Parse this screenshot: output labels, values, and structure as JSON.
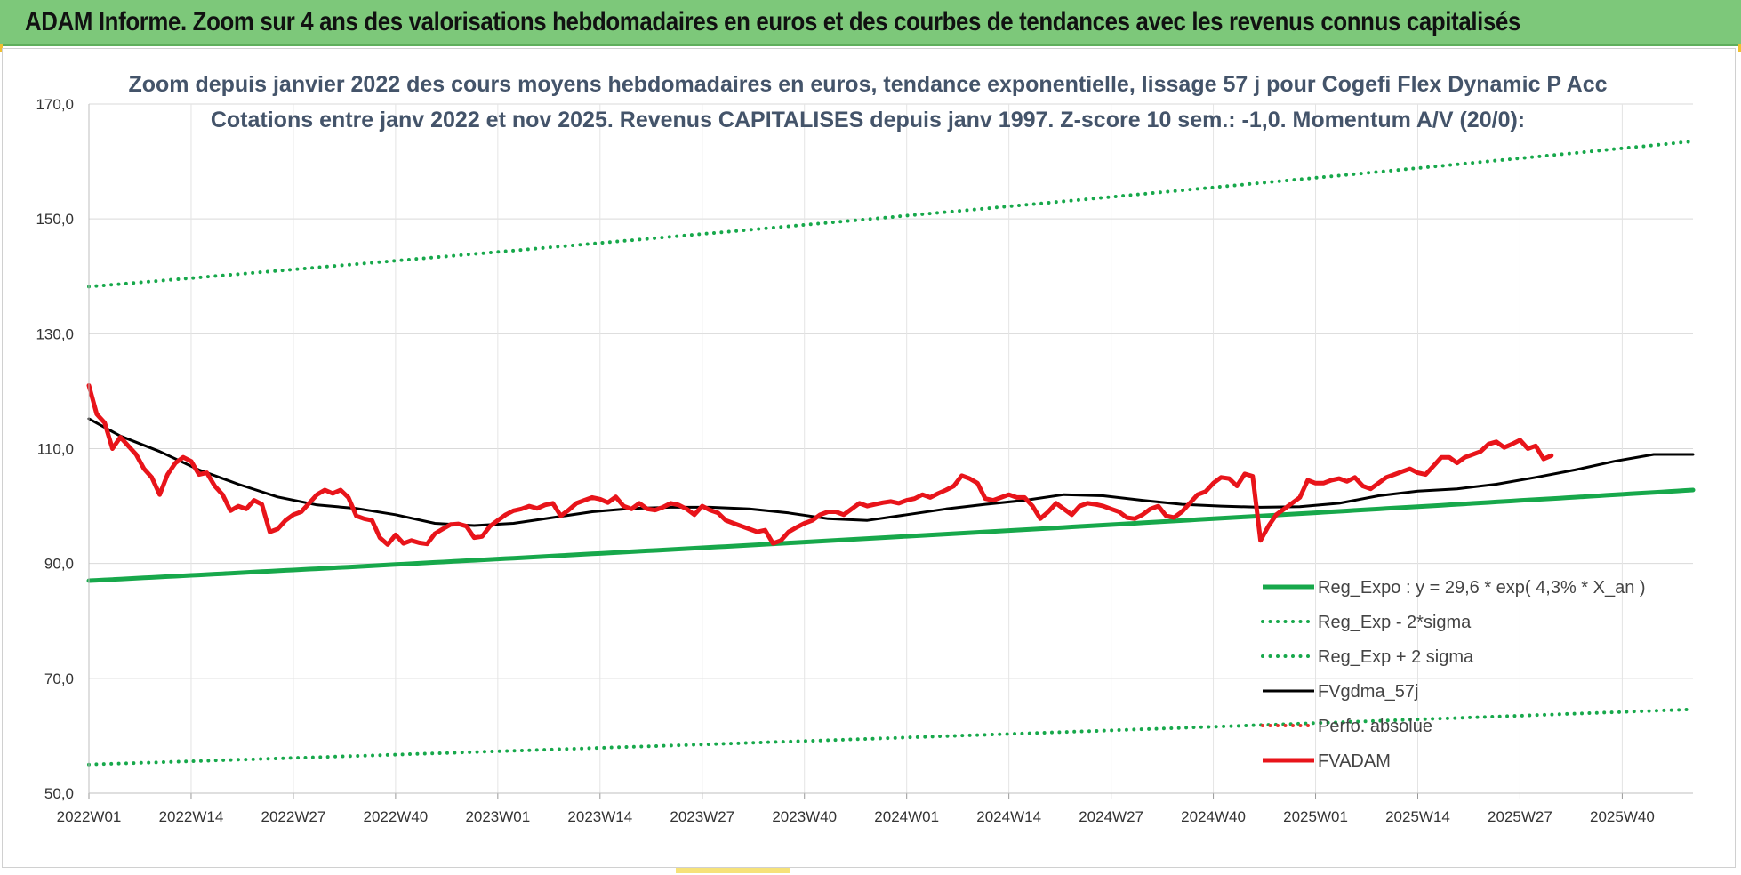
{
  "banner": {
    "title": "ADAM Informe. Zoom sur 4 ans des valorisations hebdomadaires en euros et des courbes de tendances avec les revenus connus capitalisés"
  },
  "chart_data": {
    "type": "line",
    "title_lines": [
      "Zoom depuis janvier 2022 des cours moyens hebdomadaires en euros, tendance exponentielle, lissage 57 j pour Cogefi Flex Dynamic P Acc",
      "Cotations entre janv 2022 et nov 2025. Revenus CAPITALISES depuis janv 1997. Z-score 10 sem.: -1,0. Momentum A/V (20/0):"
    ],
    "xlabel": "",
    "ylabel": "",
    "ylim": [
      50,
      170
    ],
    "yticks": [
      "50,0",
      "70,0",
      "90,0",
      "110,0",
      "130,0",
      "150,0",
      "170,0"
    ],
    "x_range_weeks": [
      1,
      205
    ],
    "xticks": [
      {
        "label": "2022W01",
        "week": 1
      },
      {
        "label": "2022W14",
        "week": 14
      },
      {
        "label": "2022W27",
        "week": 27
      },
      {
        "label": "2022W40",
        "week": 40
      },
      {
        "label": "2023W01",
        "week": 53
      },
      {
        "label": "2023W14",
        "week": 66
      },
      {
        "label": "2023W27",
        "week": 79
      },
      {
        "label": "2023W40",
        "week": 92
      },
      {
        "label": "2024W01",
        "week": 105
      },
      {
        "label": "2024W14",
        "week": 118
      },
      {
        "label": "2024W27",
        "week": 131
      },
      {
        "label": "2024W40",
        "week": 144
      },
      {
        "label": "2025W01",
        "week": 157
      },
      {
        "label": "2025W14",
        "week": 170
      },
      {
        "label": "2025W27",
        "week": 183
      },
      {
        "label": "2025W40",
        "week": 196
      }
    ],
    "grid": true,
    "legend_position": "bottom-right",
    "series": [
      {
        "name": "Reg_Expo : y = 29,6 * exp( 4,3% *  X_an )",
        "color": "#17a84b",
        "style": "solid",
        "width": 5,
        "points": [
          [
            1,
            87.0
          ],
          [
            205,
            102.8
          ]
        ]
      },
      {
        "name": "Reg_Exp - 2*sigma",
        "color": "#17a84b",
        "style": "dotted",
        "width": 4,
        "points": [
          [
            1,
            55.0
          ],
          [
            205,
            64.6
          ]
        ]
      },
      {
        "name": "Reg_Exp + 2 sigma",
        "color": "#17a84b",
        "style": "dotted",
        "width": 4,
        "points": [
          [
            1,
            138.2
          ],
          [
            205,
            163.5
          ]
        ]
      },
      {
        "name": "FVgdma_57j",
        "color": "#000000",
        "style": "solid",
        "width": 3,
        "points": [
          [
            1,
            115.2
          ],
          [
            5,
            112.2
          ],
          [
            10,
            109.5
          ],
          [
            15,
            106.3
          ],
          [
            20,
            103.8
          ],
          [
            25,
            101.6
          ],
          [
            30,
            100.2
          ],
          [
            35,
            99.6
          ],
          [
            40,
            98.5
          ],
          [
            45,
            97.0
          ],
          [
            50,
            96.6
          ],
          [
            55,
            97.0
          ],
          [
            60,
            98.0
          ],
          [
            65,
            99.0
          ],
          [
            70,
            99.6
          ],
          [
            75,
            99.8
          ],
          [
            80,
            99.8
          ],
          [
            85,
            99.5
          ],
          [
            90,
            98.8
          ],
          [
            95,
            97.8
          ],
          [
            100,
            97.5
          ],
          [
            105,
            98.5
          ],
          [
            110,
            99.5
          ],
          [
            115,
            100.3
          ],
          [
            120,
            101.0
          ],
          [
            125,
            102.0
          ],
          [
            130,
            101.8
          ],
          [
            135,
            101.0
          ],
          [
            140,
            100.3
          ],
          [
            145,
            100.0
          ],
          [
            150,
            99.8
          ],
          [
            155,
            99.9
          ],
          [
            160,
            100.5
          ],
          [
            165,
            101.8
          ],
          [
            170,
            102.6
          ],
          [
            175,
            103.0
          ],
          [
            180,
            103.8
          ],
          [
            185,
            105.0
          ],
          [
            190,
            106.3
          ],
          [
            195,
            107.8
          ],
          [
            200,
            109.0
          ],
          [
            205,
            109.0
          ]
        ]
      },
      {
        "name": "Perfo. absolue",
        "color": "#e8322e",
        "style": "dotted",
        "width": 2,
        "points": []
      },
      {
        "name": "FVADAM",
        "color": "#e8141a",
        "style": "solid",
        "width": 5,
        "points": [
          [
            1,
            121.0
          ],
          [
            2,
            116.0
          ],
          [
            3,
            114.5
          ],
          [
            4,
            110.0
          ],
          [
            5,
            112.0
          ],
          [
            6,
            110.5
          ],
          [
            7,
            109.0
          ],
          [
            8,
            106.5
          ],
          [
            9,
            105.0
          ],
          [
            10,
            102.0
          ],
          [
            11,
            105.5
          ],
          [
            12,
            107.5
          ],
          [
            13,
            108.5
          ],
          [
            14,
            107.8
          ],
          [
            15,
            105.5
          ],
          [
            16,
            105.8
          ],
          [
            17,
            103.5
          ],
          [
            18,
            102.0
          ],
          [
            19,
            99.2
          ],
          [
            20,
            100.0
          ],
          [
            21,
            99.5
          ],
          [
            22,
            101.0
          ],
          [
            23,
            100.3
          ],
          [
            24,
            95.5
          ],
          [
            25,
            96.0
          ],
          [
            26,
            97.5
          ],
          [
            27,
            98.5
          ],
          [
            28,
            99.0
          ],
          [
            29,
            100.5
          ],
          [
            30,
            102.0
          ],
          [
            31,
            102.8
          ],
          [
            32,
            102.2
          ],
          [
            33,
            102.8
          ],
          [
            34,
            101.5
          ],
          [
            35,
            98.3
          ],
          [
            36,
            97.8
          ],
          [
            37,
            97.5
          ],
          [
            38,
            94.5
          ],
          [
            39,
            93.3
          ],
          [
            40,
            95.0
          ],
          [
            41,
            93.5
          ],
          [
            42,
            94.0
          ],
          [
            43,
            93.6
          ],
          [
            44,
            93.4
          ],
          [
            45,
            95.2
          ],
          [
            46,
            96.0
          ],
          [
            47,
            96.8
          ],
          [
            48,
            96.9
          ],
          [
            49,
            96.5
          ],
          [
            50,
            94.5
          ],
          [
            51,
            94.7
          ],
          [
            52,
            96.5
          ],
          [
            53,
            97.5
          ],
          [
            54,
            98.5
          ],
          [
            55,
            99.2
          ],
          [
            56,
            99.5
          ],
          [
            57,
            100.0
          ],
          [
            58,
            99.6
          ],
          [
            59,
            100.2
          ],
          [
            60,
            100.5
          ],
          [
            61,
            98.3
          ],
          [
            62,
            99.3
          ],
          [
            63,
            100.5
          ],
          [
            64,
            101.0
          ],
          [
            65,
            101.5
          ],
          [
            66,
            101.2
          ],
          [
            67,
            100.6
          ],
          [
            68,
            101.6
          ],
          [
            69,
            100.0
          ],
          [
            70,
            99.5
          ],
          [
            71,
            100.5
          ],
          [
            72,
            99.5
          ],
          [
            73,
            99.3
          ],
          [
            74,
            99.8
          ],
          [
            75,
            100.5
          ],
          [
            76,
            100.2
          ],
          [
            77,
            99.5
          ],
          [
            78,
            98.5
          ],
          [
            79,
            100.0
          ],
          [
            80,
            99.3
          ],
          [
            81,
            98.8
          ],
          [
            82,
            97.5
          ],
          [
            83,
            97.0
          ],
          [
            84,
            96.5
          ],
          [
            85,
            96.0
          ],
          [
            86,
            95.5
          ],
          [
            87,
            95.8
          ],
          [
            88,
            93.5
          ],
          [
            89,
            94.0
          ],
          [
            90,
            95.5
          ],
          [
            91,
            96.3
          ],
          [
            92,
            97.0
          ],
          [
            93,
            97.5
          ],
          [
            94,
            98.5
          ],
          [
            95,
            99.0
          ],
          [
            96,
            99.0
          ],
          [
            97,
            98.5
          ],
          [
            98,
            99.5
          ],
          [
            99,
            100.5
          ],
          [
            100,
            100.0
          ],
          [
            101,
            100.3
          ],
          [
            102,
            100.6
          ],
          [
            103,
            100.8
          ],
          [
            104,
            100.5
          ],
          [
            105,
            101.0
          ],
          [
            106,
            101.3
          ],
          [
            107,
            102.0
          ],
          [
            108,
            101.5
          ],
          [
            109,
            102.2
          ],
          [
            110,
            102.8
          ],
          [
            111,
            103.5
          ],
          [
            112,
            105.3
          ],
          [
            113,
            104.8
          ],
          [
            114,
            104.0
          ],
          [
            115,
            101.3
          ],
          [
            116,
            101.0
          ],
          [
            117,
            101.5
          ],
          [
            118,
            102.0
          ],
          [
            119,
            101.5
          ],
          [
            120,
            101.5
          ],
          [
            121,
            100.0
          ],
          [
            122,
            97.8
          ],
          [
            123,
            99.0
          ],
          [
            124,
            100.5
          ],
          [
            125,
            99.5
          ],
          [
            126,
            98.5
          ],
          [
            127,
            100.0
          ],
          [
            128,
            100.5
          ],
          [
            129,
            100.3
          ],
          [
            130,
            100.0
          ],
          [
            131,
            99.5
          ],
          [
            132,
            99.0
          ],
          [
            133,
            98.0
          ],
          [
            134,
            97.8
          ],
          [
            135,
            98.5
          ],
          [
            136,
            99.5
          ],
          [
            137,
            100.0
          ],
          [
            138,
            98.3
          ],
          [
            139,
            98.0
          ],
          [
            140,
            99.0
          ],
          [
            141,
            100.5
          ],
          [
            142,
            102.0
          ],
          [
            143,
            102.5
          ],
          [
            144,
            104.0
          ],
          [
            145,
            105.0
          ],
          [
            146,
            104.8
          ],
          [
            147,
            103.5
          ],
          [
            148,
            105.6
          ],
          [
            149,
            105.2
          ],
          [
            150,
            94.0
          ],
          [
            151,
            96.5
          ],
          [
            152,
            98.5
          ],
          [
            153,
            99.5
          ],
          [
            154,
            100.5
          ],
          [
            155,
            101.5
          ],
          [
            156,
            104.5
          ],
          [
            157,
            104.0
          ],
          [
            158,
            104.0
          ],
          [
            159,
            104.5
          ],
          [
            160,
            104.8
          ],
          [
            161,
            104.3
          ],
          [
            162,
            105.0
          ],
          [
            163,
            103.5
          ],
          [
            164,
            103.0
          ],
          [
            165,
            104.0
          ],
          [
            166,
            105.0
          ],
          [
            167,
            105.5
          ],
          [
            168,
            106.0
          ],
          [
            169,
            106.5
          ],
          [
            170,
            105.8
          ],
          [
            171,
            105.5
          ],
          [
            172,
            107.0
          ],
          [
            173,
            108.5
          ],
          [
            174,
            108.5
          ],
          [
            175,
            107.5
          ],
          [
            176,
            108.5
          ],
          [
            177,
            109.0
          ],
          [
            178,
            109.5
          ],
          [
            179,
            110.8
          ],
          [
            180,
            111.2
          ],
          [
            181,
            110.2
          ],
          [
            182,
            110.8
          ],
          [
            183,
            111.5
          ],
          [
            184,
            110.0
          ],
          [
            185,
            110.5
          ],
          [
            186,
            108.2
          ],
          [
            187,
            108.8
          ]
        ]
      }
    ]
  }
}
